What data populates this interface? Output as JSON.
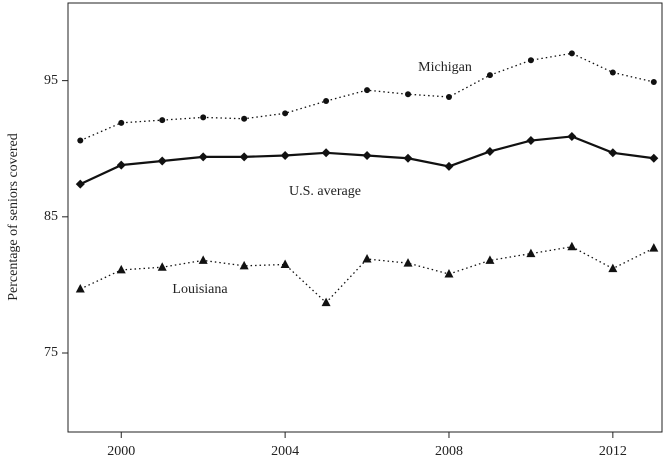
{
  "chart_data": {
    "type": "line",
    "y_label": "Percentage of seniors covered",
    "x": [
      1999,
      2000,
      2001,
      2002,
      2003,
      2004,
      2005,
      2006,
      2007,
      2008,
      2009,
      2010,
      2011,
      2012,
      2013
    ],
    "series": [
      {
        "name": "Michigan",
        "color": "#111111",
        "style": "dotted",
        "marker": "circle",
        "values": [
          90.6,
          91.9,
          92.1,
          92.3,
          92.2,
          92.6,
          93.5,
          94.3,
          94.0,
          93.8,
          95.4,
          96.5,
          97.0,
          95.6,
          94.9
        ]
      },
      {
        "name": "U.S. average",
        "color": "#111111",
        "style": "solid",
        "marker": "diamond",
        "values": [
          87.4,
          88.8,
          89.1,
          89.4,
          89.4,
          89.5,
          89.7,
          89.5,
          89.3,
          88.7,
          89.8,
          90.6,
          90.9,
          89.7,
          89.3
        ]
      },
      {
        "name": "Louisiana",
        "color": "#111111",
        "style": "dotted",
        "marker": "triangle",
        "values": [
          79.7,
          81.1,
          81.3,
          81.8,
          81.4,
          81.5,
          78.7,
          81.9,
          81.6,
          80.8,
          81.8,
          82.3,
          82.8,
          81.2,
          82.7
        ]
      }
    ],
    "xlim": [
      1998.7,
      2013.2
    ],
    "xticks": [
      2000,
      2004,
      2008,
      2012
    ],
    "ylim": [
      69.2,
      100.7
    ],
    "yticks": [
      75,
      85,
      95
    ]
  }
}
